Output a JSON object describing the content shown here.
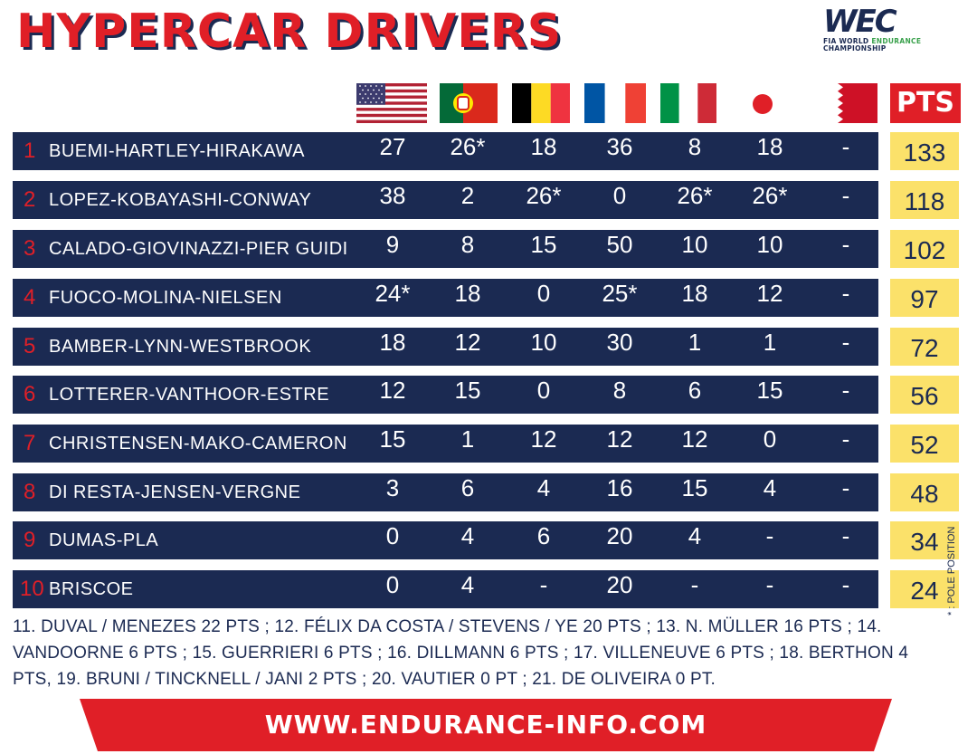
{
  "title": "HYPERCAR DRIVERS",
  "logo": {
    "mark": "WEC",
    "line1_a": "FIA WORLD ",
    "line1_b": "ENDURANCE",
    "line2": "CHAMPIONSHIP"
  },
  "flags": [
    "usa-flag-icon",
    "portugal-flag-icon",
    "belgium-flag-icon",
    "france-flag-icon",
    "italy-flag-icon",
    "japan-flag-icon",
    "bahrain-flag-icon"
  ],
  "pts_header": "PTS",
  "rows": [
    {
      "pos": "1",
      "name": "BUEMI-HARTLEY-HIRAKAWA",
      "r": [
        "27",
        "26*",
        "18",
        "36",
        "8",
        "18",
        "-"
      ],
      "total": "133"
    },
    {
      "pos": "2",
      "name": "LOPEZ-KOBAYASHI-CONWAY",
      "r": [
        "38",
        "2",
        "26*",
        "0",
        "26*",
        "26*",
        "-"
      ],
      "total": "118"
    },
    {
      "pos": "3",
      "name": "CALADO-GIOVINAZZI-PIER GUIDI",
      "r": [
        "9",
        "8",
        "15",
        "50",
        "10",
        "10",
        "-"
      ],
      "total": "102"
    },
    {
      "pos": "4",
      "name": "FUOCO-MOLINA-NIELSEN",
      "r": [
        "24*",
        "18",
        "0",
        "25*",
        "18",
        "12",
        "-"
      ],
      "total": "97"
    },
    {
      "pos": "5",
      "name": "BAMBER-LYNN-WESTBROOK",
      "r": [
        "18",
        "12",
        "10",
        "30",
        "1",
        "1",
        "-"
      ],
      "total": "72"
    },
    {
      "pos": "6",
      "name": "LOTTERER-VANTHOOR-ESTRE",
      "r": [
        "12",
        "15",
        "0",
        "8",
        "6",
        "15",
        "-"
      ],
      "total": "56"
    },
    {
      "pos": "7",
      "name": "CHRISTENSEN-MAKO-CAMERON",
      "r": [
        "15",
        "1",
        "12",
        "12",
        "12",
        "0",
        "-"
      ],
      "total": "52"
    },
    {
      "pos": "8",
      "name": "DI RESTA-JENSEN-VERGNE",
      "r": [
        "3",
        "6",
        "4",
        "16",
        "15",
        "4",
        "-"
      ],
      "total": "48"
    },
    {
      "pos": "9",
      "name": "DUMAS-PLA",
      "r": [
        "0",
        "4",
        "6",
        "20",
        "4",
        "-",
        "-"
      ],
      "total": "34"
    },
    {
      "pos": "10",
      "name": "BRISCOE",
      "r": [
        "0",
        "4",
        "-",
        "20",
        "-",
        "-",
        "-"
      ],
      "total": "24"
    }
  ],
  "pole_note": "* : POLE POSITION",
  "others": "11. DUVAL / MENEZES 22 PTS ; 12. FÉLIX DA COSTA / STEVENS / YE 20 PTS ; 13. N. MÜLLER 16 PTS ; 14. VANDOORNE 6 PTS ; 15. GUERRIERI 6 PTS ; 16. DILLMANN 6 PTS ; 17. VILLENEUVE 6 PTS ;  18. BERTHON 4 PTS, 19. BRUNI / TINCKNELL / JANI 2 PTS ; 20. VAUTIER 0 PT ; 21. DE OLIVEIRA 0 PT.",
  "url": "WWW.ENDURANCE-INFO.COM",
  "colors": {
    "navy": "#1b2a52",
    "red": "#e01f27",
    "yellow": "#fbe16a"
  }
}
